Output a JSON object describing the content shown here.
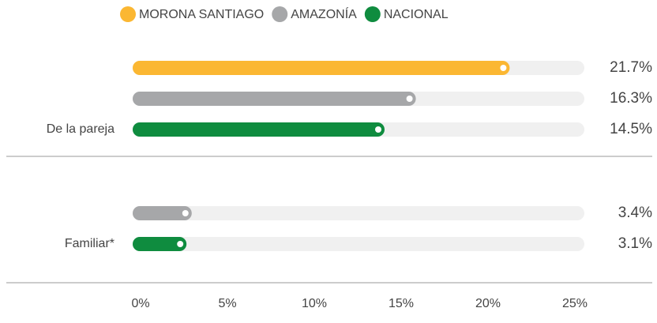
{
  "chart_data": {
    "type": "bar",
    "categories": [
      "De la pareja",
      "Familiar*"
    ],
    "series": [
      {
        "name": "MORONA SANTIAGO",
        "color": "#fbb732",
        "values": [
          21.7,
          null
        ],
        "value_labels": [
          "21.7%",
          null
        ]
      },
      {
        "name": "AMAZONÍA",
        "color": "#a6a7a9",
        "values": [
          16.3,
          3.4
        ],
        "value_labels": [
          "16.3%",
          "3.4%"
        ]
      },
      {
        "name": "NACIONAL",
        "color": "#0f8c3f",
        "values": [
          14.5,
          3.1
        ],
        "value_labels": [
          "14.5%",
          "3.1%"
        ]
      }
    ],
    "xlim": [
      0,
      26
    ],
    "xticks": [
      {
        "value": 0,
        "label": "0%"
      },
      {
        "value": 5,
        "label": "5%"
      },
      {
        "value": 10,
        "label": "10%"
      },
      {
        "value": 15,
        "label": "15%"
      },
      {
        "value": 20,
        "label": "20%"
      },
      {
        "value": 25,
        "label": "25%"
      }
    ]
  }
}
